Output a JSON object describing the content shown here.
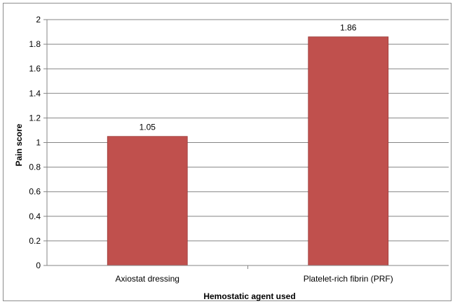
{
  "chart_data": {
    "type": "bar",
    "categories": [
      "Axiostat dressing",
      "Platelet-rich fibrin (PRF)"
    ],
    "values": [
      1.05,
      1.86
    ],
    "data_labels": [
      "1.05",
      "1.86"
    ],
    "title": "",
    "xlabel": "Hemostatic agent used",
    "ylabel": "Pain score",
    "ylim": [
      0,
      2
    ],
    "yticks": [
      "0",
      "0.2",
      "0.4",
      "0.6",
      "0.8",
      "1",
      "1.2",
      "1.4",
      "1.6",
      "1.8",
      "2"
    ],
    "grid": true,
    "legend": "none",
    "bar_color": "#c0504d",
    "bar_edge_color": "#9b3b38",
    "gridline_color": "#858585"
  }
}
